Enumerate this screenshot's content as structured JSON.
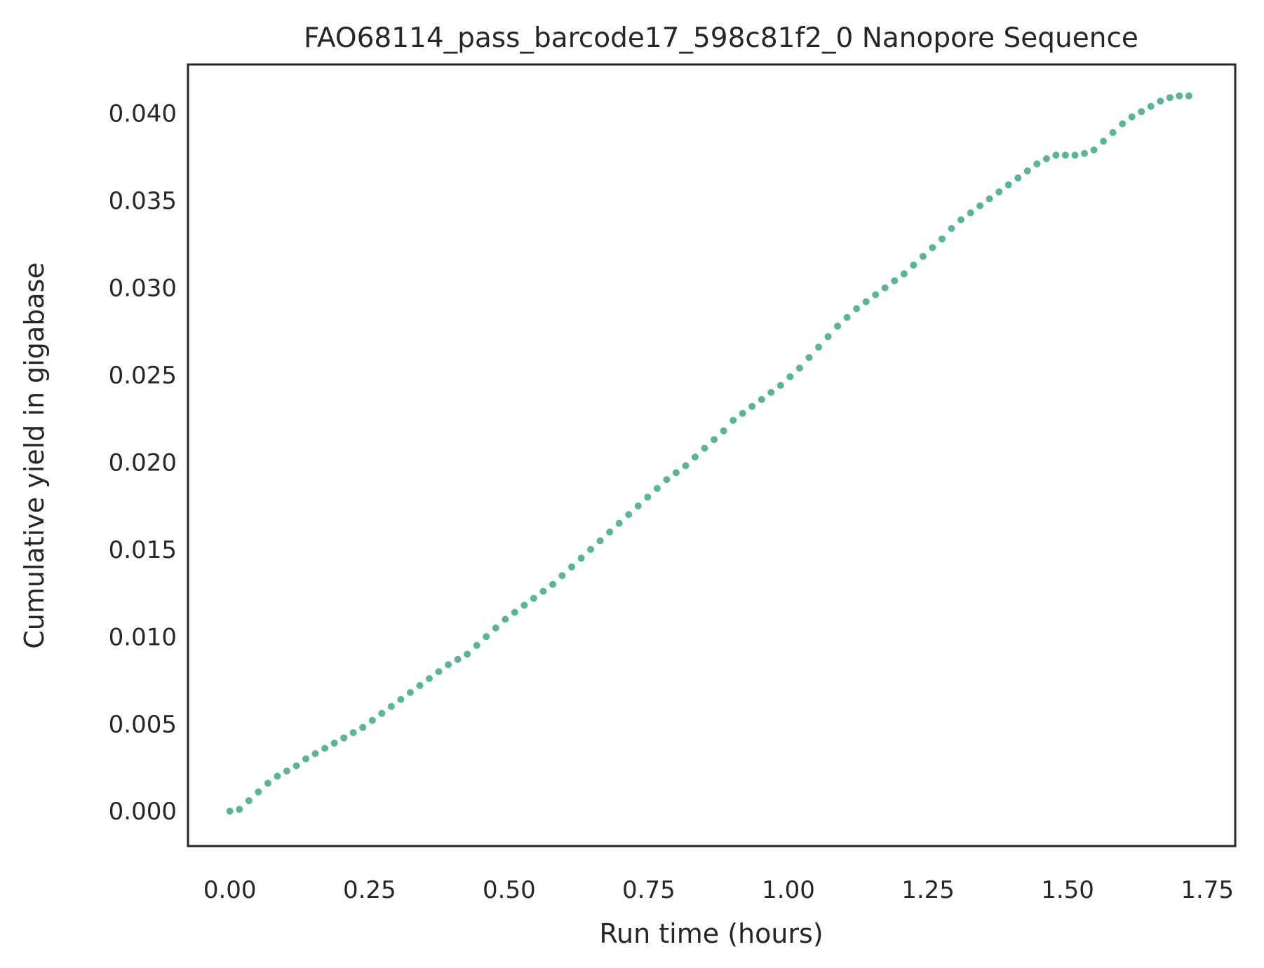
{
  "chart_data": {
    "type": "scatter",
    "title": "FAO68114_pass_barcode17_598c81f2_0 Nanopore Sequence",
    "xlabel": "Run time (hours)",
    "ylabel": "Cumulative yield in gigabase",
    "xlim": [
      -0.075,
      1.8
    ],
    "ylim": [
      -0.002,
      0.0428
    ],
    "xticks": [
      0.0,
      0.25,
      0.5,
      0.75,
      1.0,
      1.25,
      1.5,
      1.75
    ],
    "xtick_labels": [
      "0.00",
      "0.25",
      "0.50",
      "0.75",
      "1.00",
      "1.25",
      "1.50",
      "1.75"
    ],
    "yticks": [
      0.0,
      0.005,
      0.01,
      0.015,
      0.02,
      0.025,
      0.03,
      0.035,
      0.04
    ],
    "ytick_labels": [
      "0.000",
      "0.005",
      "0.010",
      "0.015",
      "0.020",
      "0.025",
      "0.030",
      "0.035",
      "0.040"
    ],
    "grid": false,
    "marker_color": "#59b597",
    "series": [
      {
        "x": [
          0.0,
          0.017,
          0.034,
          0.051,
          0.068,
          0.085,
          0.102,
          0.119,
          0.136,
          0.153,
          0.17,
          0.187,
          0.204,
          0.221,
          0.238,
          0.255,
          0.272,
          0.289,
          0.306,
          0.323,
          0.34,
          0.357,
          0.374,
          0.391,
          0.408,
          0.425,
          0.442,
          0.459,
          0.476,
          0.493,
          0.51,
          0.527,
          0.544,
          0.561,
          0.578,
          0.595,
          0.612,
          0.629,
          0.646,
          0.663,
          0.68,
          0.697,
          0.714,
          0.731,
          0.748,
          0.765,
          0.782,
          0.799,
          0.816,
          0.833,
          0.85,
          0.867,
          0.884,
          0.901,
          0.918,
          0.935,
          0.952,
          0.969,
          0.986,
          1.003,
          1.02,
          1.037,
          1.054,
          1.071,
          1.088,
          1.105,
          1.122,
          1.139,
          1.156,
          1.173,
          1.19,
          1.207,
          1.224,
          1.241,
          1.258,
          1.275,
          1.292,
          1.309,
          1.326,
          1.343,
          1.36,
          1.377,
          1.394,
          1.411,
          1.428,
          1.445,
          1.462,
          1.479,
          1.496,
          1.513,
          1.53,
          1.547,
          1.564,
          1.581,
          1.598,
          1.615,
          1.632,
          1.649,
          1.666,
          1.683,
          1.7,
          1.717
        ],
        "y": [
          0.0,
          0.0001,
          0.0006,
          0.0011,
          0.0016,
          0.002,
          0.0023,
          0.0026,
          0.003,
          0.0033,
          0.0036,
          0.0039,
          0.0042,
          0.0045,
          0.0048,
          0.0052,
          0.0056,
          0.006,
          0.0064,
          0.0068,
          0.0072,
          0.0076,
          0.008,
          0.0084,
          0.0087,
          0.009,
          0.0095,
          0.01,
          0.0105,
          0.011,
          0.0114,
          0.0118,
          0.0122,
          0.0126,
          0.013,
          0.0135,
          0.014,
          0.0145,
          0.015,
          0.0155,
          0.016,
          0.0165,
          0.017,
          0.0175,
          0.018,
          0.0185,
          0.019,
          0.0194,
          0.0198,
          0.0203,
          0.0208,
          0.0213,
          0.0218,
          0.0224,
          0.0228,
          0.0232,
          0.0236,
          0.024,
          0.0244,
          0.0249,
          0.0254,
          0.026,
          0.0266,
          0.0272,
          0.0278,
          0.0283,
          0.0288,
          0.0292,
          0.0296,
          0.03,
          0.0304,
          0.0308,
          0.0313,
          0.0318,
          0.0323,
          0.0328,
          0.0334,
          0.0339,
          0.0343,
          0.0347,
          0.0351,
          0.0355,
          0.0359,
          0.0363,
          0.0367,
          0.0371,
          0.0374,
          0.0376,
          0.0376,
          0.0376,
          0.0377,
          0.0379,
          0.0384,
          0.0389,
          0.0394,
          0.0398,
          0.0401,
          0.0404,
          0.0407,
          0.0409,
          0.041,
          0.041
        ]
      }
    ]
  }
}
